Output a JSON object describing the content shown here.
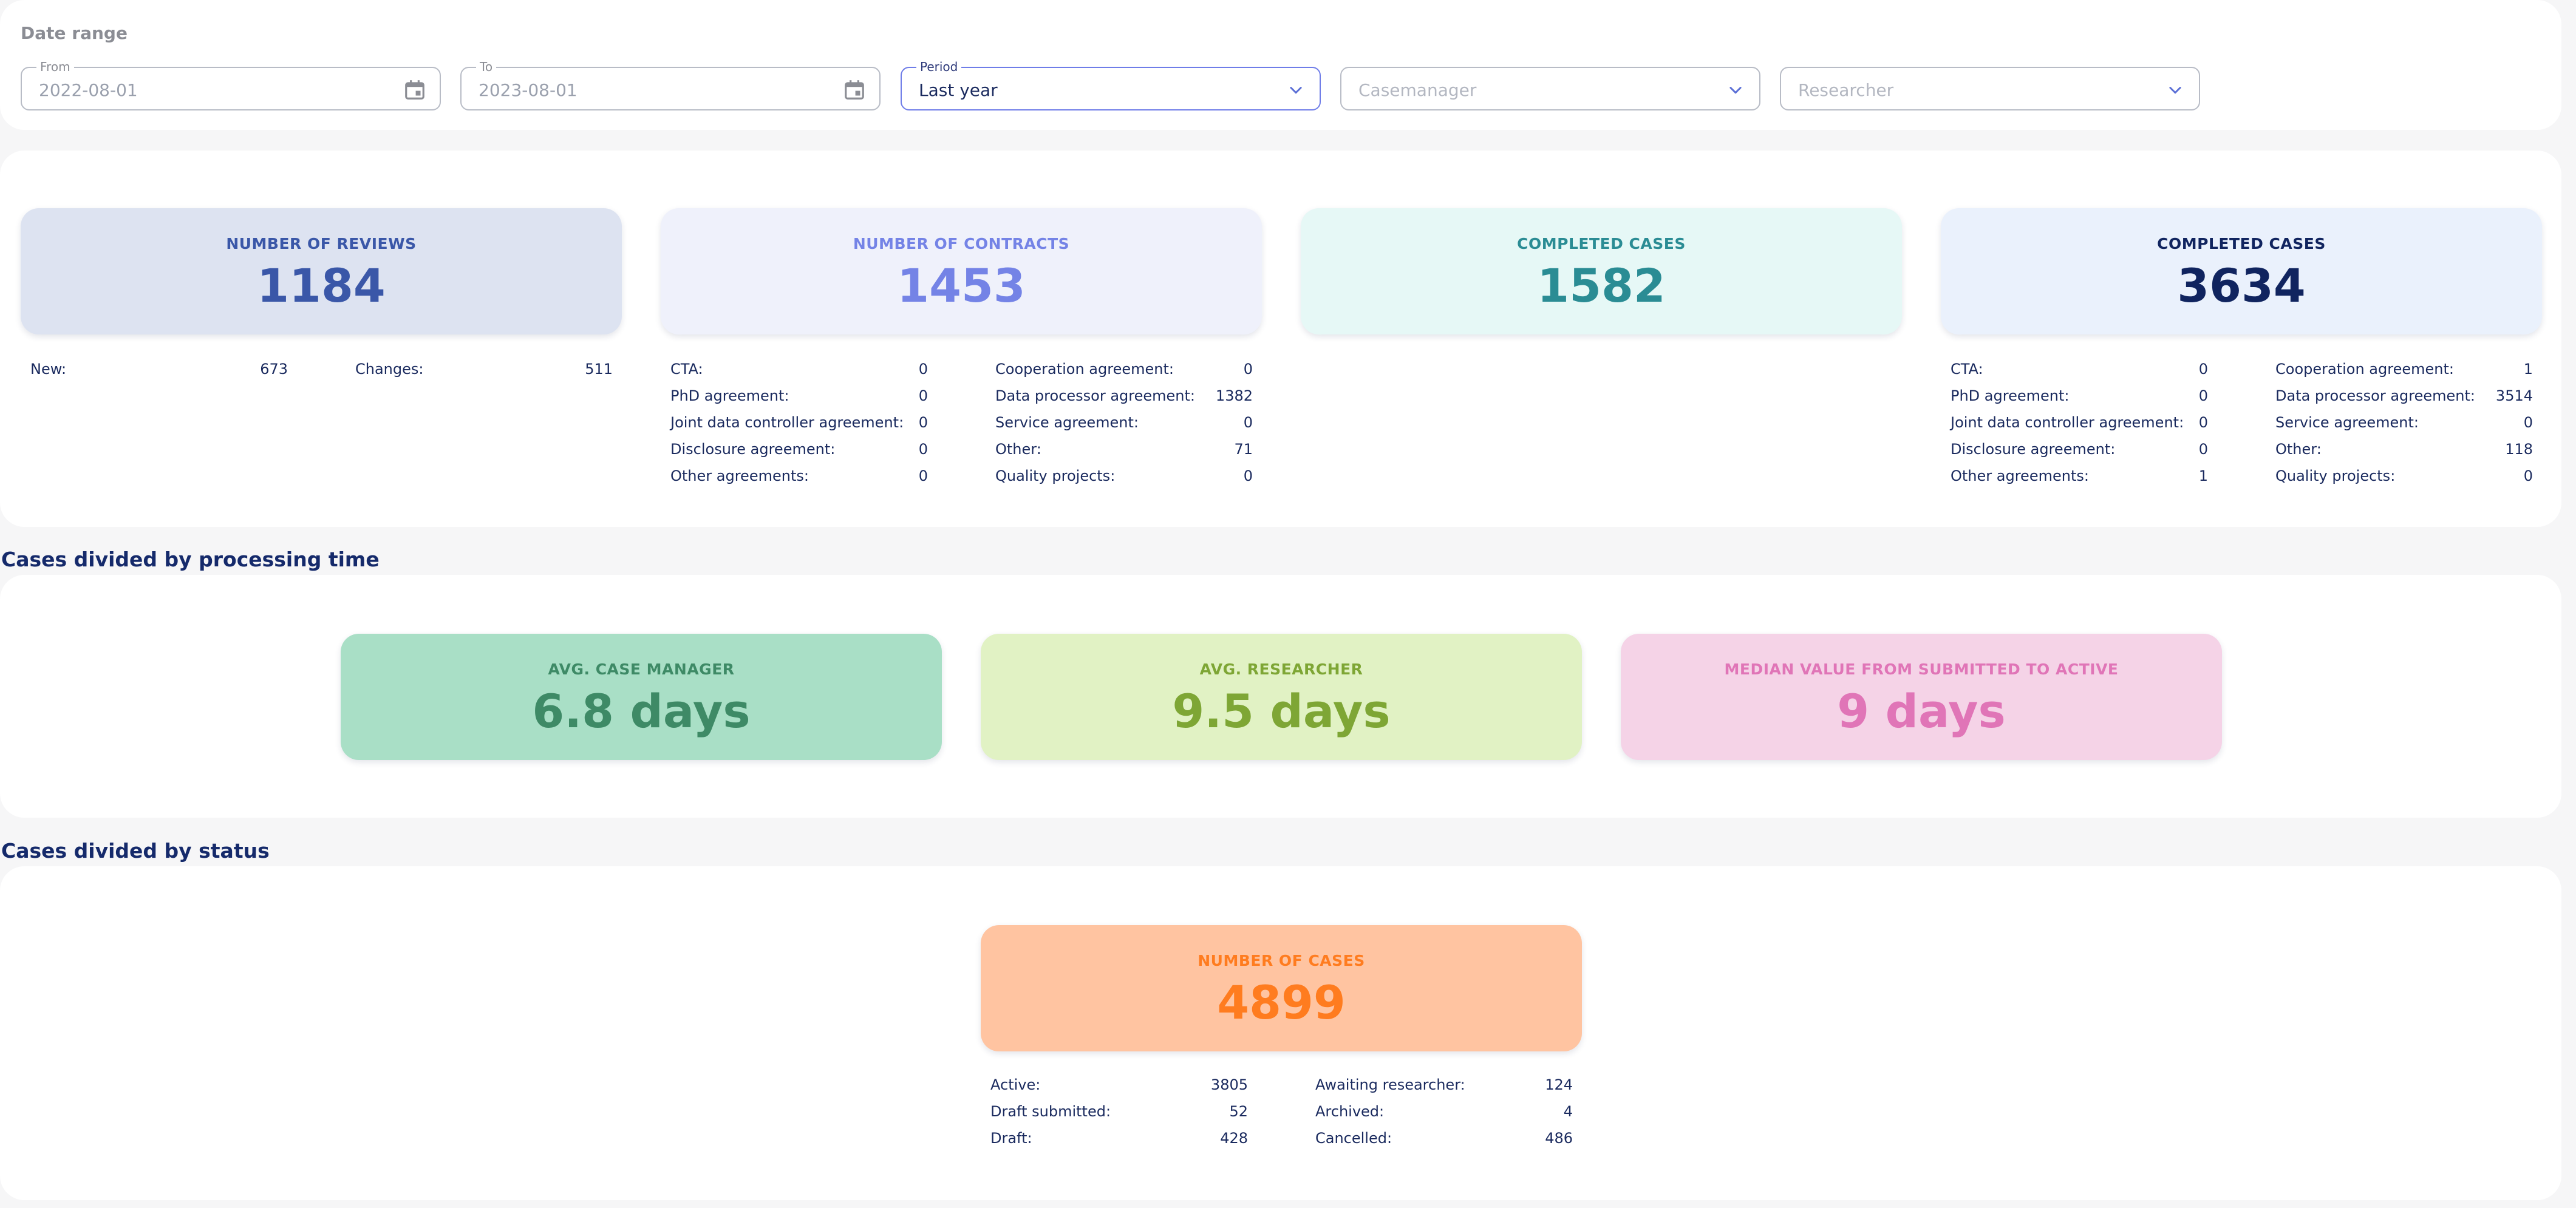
{
  "filters": {
    "title": "Date range",
    "from": {
      "legend": "From",
      "value": "2022-08-01"
    },
    "to": {
      "legend": "To",
      "value": "2023-08-01"
    },
    "period": {
      "legend": "Period",
      "value": "Last year"
    },
    "casemanager": {
      "placeholder": "Casemanager"
    },
    "researcher": {
      "placeholder": "Researcher"
    }
  },
  "summary": {
    "reviews": {
      "label": "NUMBER OF REVIEWS",
      "value": "1184",
      "rows": [
        {
          "k": "New:",
          "v": "673"
        },
        {
          "k": "Changes:",
          "v": "511"
        }
      ]
    },
    "contracts": {
      "label": "NUMBER OF CONTRACTS",
      "value": "1453",
      "left": [
        {
          "k": "CTA:",
          "v": "0"
        },
        {
          "k": "PhD agreement:",
          "v": "0"
        },
        {
          "k": "Joint data controller agreement:",
          "v": "0"
        },
        {
          "k": "Disclosure agreement:",
          "v": "0"
        },
        {
          "k": "Other agreements:",
          "v": "0"
        }
      ],
      "right": [
        {
          "k": "Cooperation agreement:",
          "v": "0"
        },
        {
          "k": "Data processor agreement:",
          "v": "1382"
        },
        {
          "k": "Service agreement:",
          "v": "0"
        },
        {
          "k": "Other:",
          "v": "71"
        },
        {
          "k": "Quality projects:",
          "v": "0"
        }
      ]
    },
    "completed1": {
      "label": "COMPLETED CASES",
      "value": "1582"
    },
    "completed2": {
      "label": "COMPLETED CASES",
      "value": "3634",
      "left": [
        {
          "k": "CTA:",
          "v": "0"
        },
        {
          "k": "PhD agreement:",
          "v": "0"
        },
        {
          "k": "Joint data controller agreement:",
          "v": "0"
        },
        {
          "k": "Disclosure agreement:",
          "v": "0"
        },
        {
          "k": "Other agreements:",
          "v": "1"
        }
      ],
      "right": [
        {
          "k": "Cooperation agreement:",
          "v": "1"
        },
        {
          "k": "Data processor agreement:",
          "v": "3514"
        },
        {
          "k": "Service agreement:",
          "v": "0"
        },
        {
          "k": "Other:",
          "v": "118"
        },
        {
          "k": "Quality projects:",
          "v": "0"
        }
      ]
    }
  },
  "processing": {
    "heading": "Cases divided by processing time",
    "cards": [
      {
        "label": "AVG. CASE MANAGER",
        "value": "6.8 days"
      },
      {
        "label": "AVG. RESEARCHER",
        "value": "9.5 days"
      },
      {
        "label": "MEDIAN VALUE FROM SUBMITTED TO ACTIVE",
        "value": "9 days"
      }
    ]
  },
  "status": {
    "heading": "Cases divided by status",
    "card": {
      "label": "NUMBER OF CASES",
      "value": "4899"
    },
    "left": [
      {
        "k": "Active:",
        "v": "3805"
      },
      {
        "k": "Draft submitted:",
        "v": "52"
      },
      {
        "k": "Draft:",
        "v": "428"
      }
    ],
    "right": [
      {
        "k": "Awaiting researcher:",
        "v": "124"
      },
      {
        "k": "Archived:",
        "v": "4"
      },
      {
        "k": "Cancelled:",
        "v": "486"
      }
    ]
  },
  "colors": {
    "reviews_bg": "#dde3f1",
    "reviews_fg": "#3a57a8",
    "contracts_bg": "#eff1fb",
    "contracts_fg": "#7483e6",
    "completed1_bg": "#e6f8f6",
    "completed1_fg": "#2a8c94",
    "completed2_bg": "#eaf1fc",
    "completed2_fg": "#10245f",
    "casemanager_bg": "#a9dfc6",
    "casemanager_fg": "#3e8a66",
    "researcher_bg": "#e1f2c4",
    "researcher_fg": "#7ea635",
    "median_bg": "#f5d3e7",
    "median_fg": "#e075b7",
    "cases_bg": "#ffc4a1",
    "cases_fg": "#ff7c1f"
  },
  "icons": [
    "calendar-icon",
    "chevron-down-icon"
  ]
}
